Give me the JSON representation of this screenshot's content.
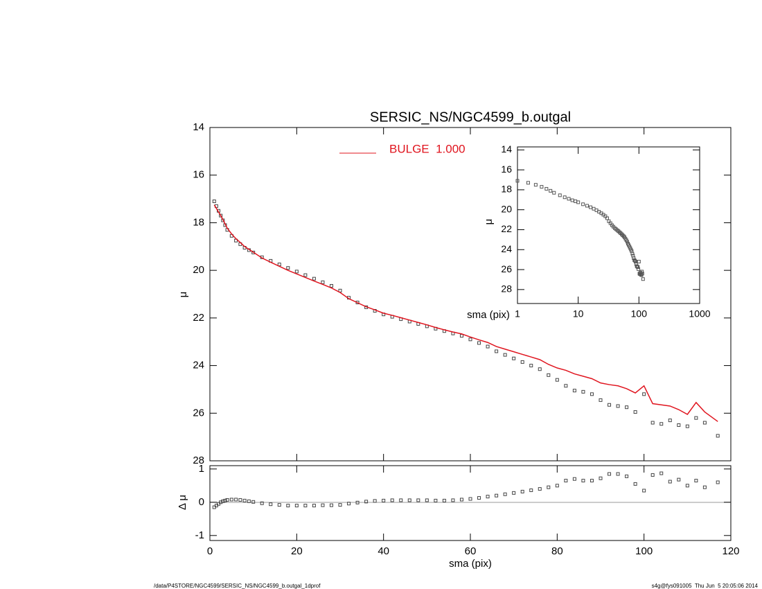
{
  "chart_data": [
    {
      "type": "scatter",
      "title": "SERSIC_NS/NGC4599_b.outgal",
      "y_label": "μ",
      "x": [
        1,
        1.5,
        2,
        2.5,
        3,
        3.5,
        4,
        5,
        6,
        7,
        8,
        9,
        10,
        12,
        14,
        16,
        18,
        20,
        22,
        24,
        26,
        28,
        30,
        32,
        34,
        36,
        38,
        40,
        42,
        44,
        46,
        48,
        50,
        52,
        54,
        56,
        58,
        60,
        62,
        64,
        66,
        68,
        70,
        72,
        74,
        76,
        78,
        80,
        82,
        84,
        86,
        88,
        90,
        92,
        94,
        96,
        98,
        100,
        102,
        104,
        106,
        108,
        110,
        112,
        114,
        117
      ],
      "series": [
        {
          "color": "#444444",
          "style": "marker",
          "values": [
            17.1,
            17.3,
            17.5,
            17.7,
            17.9,
            18.1,
            18.3,
            18.55,
            18.75,
            18.9,
            19.05,
            19.15,
            19.25,
            19.45,
            19.6,
            19.75,
            19.9,
            20.05,
            20.2,
            20.35,
            20.5,
            20.65,
            20.85,
            21.15,
            21.35,
            21.55,
            21.7,
            21.85,
            21.95,
            22.05,
            22.15,
            22.25,
            22.35,
            22.45,
            22.55,
            22.65,
            22.75,
            22.9,
            23.05,
            23.2,
            23.4,
            23.55,
            23.7,
            23.85,
            24.0,
            24.15,
            24.4,
            24.6,
            24.85,
            25.05,
            25.1,
            25.2,
            25.45,
            25.65,
            25.7,
            25.75,
            25.95,
            25.2,
            26.4,
            26.45,
            26.3,
            26.5,
            26.55,
            26.2,
            26.4,
            26.95
          ]
        },
        {
          "name": "BULGE  1.000",
          "color": "#e0141e",
          "style": "line",
          "values": [
            17.25,
            17.4,
            17.55,
            17.7,
            17.87,
            18.05,
            18.23,
            18.47,
            18.67,
            18.83,
            19.0,
            19.12,
            19.24,
            19.48,
            19.66,
            19.83,
            20.0,
            20.15,
            20.3,
            20.45,
            20.59,
            20.74,
            20.93,
            21.19,
            21.36,
            21.53,
            21.66,
            21.8,
            21.89,
            21.99,
            22.09,
            22.19,
            22.29,
            22.4,
            22.5,
            22.59,
            22.67,
            22.8,
            22.92,
            23.03,
            23.2,
            23.31,
            23.42,
            23.53,
            23.64,
            23.75,
            23.95,
            24.1,
            24.2,
            24.35,
            24.45,
            24.55,
            24.73,
            24.8,
            24.85,
            24.97,
            25.15,
            24.85,
            25.6,
            25.65,
            25.7,
            25.85,
            26.05,
            25.55,
            25.95,
            26.35
          ]
        }
      ],
      "xlim": [
        0,
        120
      ],
      "xticks": [
        0,
        20,
        40,
        60,
        80,
        100,
        120
      ],
      "ylim": [
        28,
        14
      ],
      "yticks": [
        14,
        16,
        18,
        20,
        22,
        24,
        26,
        28
      ]
    },
    {
      "type": "scatter",
      "x_log": true,
      "x_label": "sma (pix)",
      "y_label": "μ",
      "xlim": [
        1,
        1000
      ],
      "xticks": [
        1,
        10,
        100,
        1000
      ],
      "ylim": [
        29.4,
        13.7
      ],
      "yticks": [
        14,
        16,
        18,
        20,
        22,
        24,
        26,
        28
      ]
    },
    {
      "type": "scatter",
      "x_label": "sma (pix)",
      "y_label": "Δ μ",
      "values": [
        -0.15,
        -0.1,
        -0.05,
        0,
        0.03,
        0.05,
        0.07,
        0.08,
        0.08,
        0.07,
        0.05,
        0.03,
        0.01,
        -0.03,
        -0.06,
        -0.08,
        -0.1,
        -0.1,
        -0.1,
        -0.1,
        -0.09,
        -0.09,
        -0.08,
        -0.04,
        -0.01,
        0.02,
        0.04,
        0.05,
        0.06,
        0.06,
        0.06,
        0.06,
        0.06,
        0.05,
        0.05,
        0.06,
        0.08,
        0.1,
        0.13,
        0.17,
        0.2,
        0.24,
        0.28,
        0.32,
        0.36,
        0.4,
        0.45,
        0.5,
        0.65,
        0.7,
        0.65,
        0.65,
        0.72,
        0.85,
        0.85,
        0.78,
        0.55,
        0.35,
        0.82,
        0.87,
        0.62,
        0.68,
        0.5,
        0.65,
        0.45,
        0.6
      ],
      "xlim": [
        0,
        120
      ],
      "xticks": [
        0,
        20,
        40,
        60,
        80,
        100,
        120
      ],
      "ylim": [
        -1.15,
        1.1
      ],
      "yticks": [
        -1,
        0,
        1
      ]
    }
  ],
  "footer": {
    "left": "/data/P4STORE/NGC4599/SERSIC_NS/NGC4599_b.outgal_1dprof",
    "right": "s4g@fys091005  Thu Jun  5 20:05:06 2014"
  }
}
